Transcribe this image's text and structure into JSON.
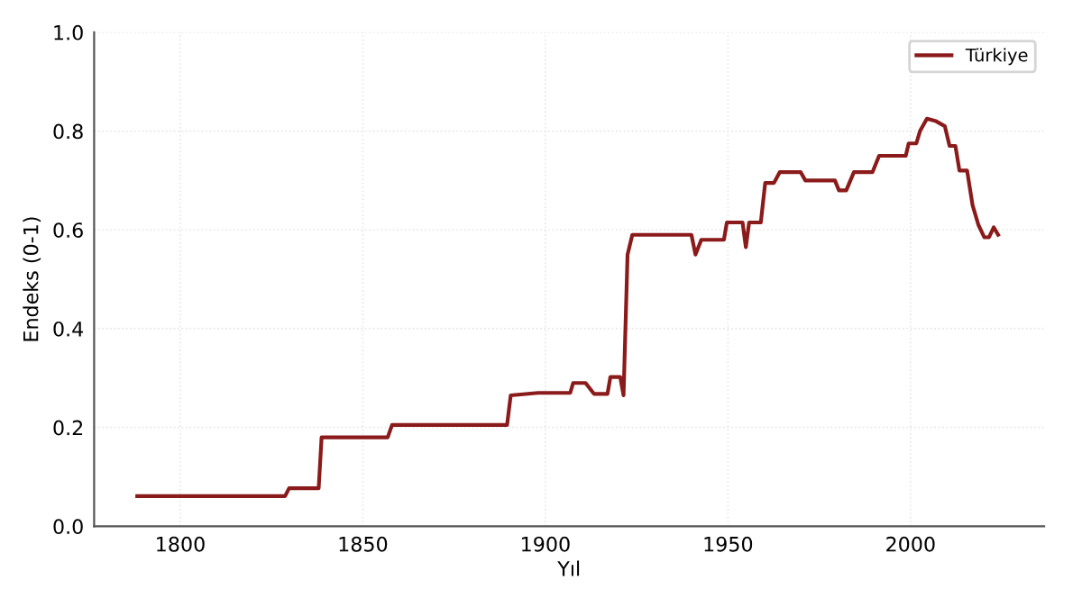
{
  "chart_data": {
    "type": "line",
    "xlabel": "Yıl",
    "ylabel": "Endeks (0-1)",
    "xlim": [
      1776.4,
      2036.6
    ],
    "xticks": [
      1800,
      1850,
      1900,
      1950,
      2000
    ],
    "ylim": [
      0,
      1
    ],
    "yticks": [
      {
        "value": 0,
        "label": "0.0"
      },
      {
        "value": 0.2,
        "label": "0.2"
      },
      {
        "value": 0.4,
        "label": "0.4"
      },
      {
        "value": 0.6,
        "label": "0.6"
      },
      {
        "value": 0.8,
        "label": "0.8"
      },
      {
        "value": 1,
        "label": "1.0"
      }
    ],
    "grid": true,
    "legend": "top right",
    "line_style": "solid",
    "marker": "none",
    "series": [
      {
        "name": "Türkiye",
        "color": "#8b1a1a",
        "x": [
          1788.2,
          1828.7,
          1829.8,
          1837.9,
          1838.7,
          1856.8,
          1858,
          1889.5,
          1890.5,
          1898,
          1906.8,
          1907.6,
          1911,
          1913.3,
          1917,
          1917.8,
          1920.5,
          1921.4,
          1922.5,
          1923.8,
          1940,
          1941.1,
          1942.7,
          1948.9,
          1949.7,
          1954,
          1954.9,
          1955.8,
          1959,
          1960.2,
          1962.6,
          1964.2,
          1969.9,
          1971.2,
          1979.3,
          1980.4,
          1982.4,
          1984.5,
          1989.6,
          1991.4,
          1998.7,
          1999.5,
          2001.6,
          2002.6,
          2004.5,
          2007,
          2009.4,
          2010.7,
          2012.3,
          2013.4,
          2015.5,
          2017,
          2018.6,
          2020.2,
          2021.5,
          2022.8,
          2024
        ],
        "values": [
          0.061,
          0.061,
          0.077,
          0.077,
          0.18,
          0.18,
          0.205,
          0.205,
          0.265,
          0.27,
          0.27,
          0.29,
          0.29,
          0.268,
          0.268,
          0.302,
          0.302,
          0.265,
          0.55,
          0.59,
          0.59,
          0.55,
          0.58,
          0.58,
          0.615,
          0.615,
          0.565,
          0.615,
          0.615,
          0.695,
          0.695,
          0.717,
          0.717,
          0.7,
          0.7,
          0.68,
          0.68,
          0.717,
          0.717,
          0.75,
          0.75,
          0.775,
          0.775,
          0.8,
          0.825,
          0.82,
          0.81,
          0.77,
          0.77,
          0.72,
          0.72,
          0.65,
          0.61,
          0.585,
          0.585,
          0.605,
          0.59
        ]
      }
    ]
  }
}
